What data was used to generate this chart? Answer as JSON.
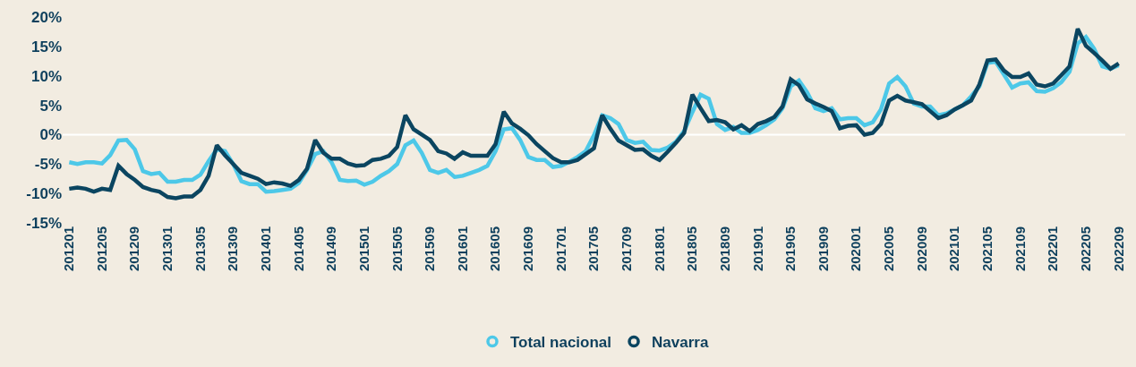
{
  "chart_data": {
    "type": "line",
    "categories": [
      "201201",
      null,
      null,
      null,
      "201205",
      null,
      null,
      null,
      "201209",
      null,
      null,
      null,
      "201301",
      null,
      null,
      null,
      "201305",
      null,
      null,
      null,
      "201309",
      null,
      null,
      null,
      "201401",
      null,
      null,
      null,
      "201405",
      null,
      null,
      null,
      "201409",
      null,
      null,
      null,
      "201501",
      null,
      null,
      null,
      "201505",
      null,
      null,
      null,
      "201509",
      null,
      null,
      null,
      "201601",
      null,
      null,
      null,
      "201605",
      null,
      null,
      null,
      "201609",
      null,
      null,
      null,
      "201701",
      null,
      null,
      null,
      "201705",
      null,
      null,
      null,
      "201709",
      null,
      null,
      null,
      "201801",
      null,
      null,
      null,
      "201805",
      null,
      null,
      null,
      "201809",
      null,
      null,
      null,
      "201901",
      null,
      null,
      null,
      "201905",
      null,
      null,
      null,
      "201909",
      null,
      null,
      null,
      "202001",
      null,
      null,
      null,
      "202005",
      null,
      null,
      null,
      "202009",
      null,
      null,
      null,
      "202101",
      null,
      null,
      null,
      "202105",
      null,
      null,
      null,
      "202109",
      null,
      null,
      null,
      "202201",
      null,
      null,
      null,
      "202205",
      null,
      null,
      null,
      "202209"
    ],
    "series": [
      {
        "name": "Total nacional",
        "color": "#4dc8e8",
        "values": [
          -4.7,
          -5.0,
          -4.7,
          -4.7,
          -4.9,
          -3.5,
          -1.0,
          -0.9,
          -2.5,
          -6.2,
          -6.7,
          -6.5,
          -8.0,
          -8.0,
          -7.7,
          -7.7,
          -6.8,
          -4.5,
          -2.5,
          -2.8,
          -5.0,
          -7.9,
          -8.4,
          -8.4,
          -9.7,
          -9.6,
          -9.4,
          -9.2,
          -8.2,
          -6.0,
          -3.3,
          -2.8,
          -4.7,
          -7.7,
          -7.9,
          -7.8,
          -8.5,
          -8.0,
          -7.0,
          -6.2,
          -5.0,
          -1.8,
          -1.0,
          -3.1,
          -6.0,
          -6.5,
          -6.0,
          -7.2,
          -7.0,
          -6.5,
          -6.0,
          -5.3,
          -2.8,
          0.9,
          1.1,
          -0.9,
          -3.8,
          -4.3,
          -4.3,
          -5.5,
          -5.3,
          -4.6,
          -3.8,
          -2.8,
          -0.1,
          3.3,
          2.8,
          1.8,
          -0.9,
          -1.4,
          -1.2,
          -2.6,
          -2.7,
          -2.2,
          -1.2,
          0.6,
          3.8,
          6.8,
          6.1,
          1.8,
          0.8,
          1.3,
          0.3,
          0.3,
          0.8,
          1.6,
          2.6,
          4.5,
          8.2,
          9.2,
          7.2,
          4.5,
          4.0,
          4.5,
          2.6,
          2.8,
          2.8,
          1.6,
          2.1,
          4.3,
          8.7,
          9.8,
          8.2,
          5.3,
          4.8,
          4.8,
          3.3,
          3.6,
          4.3,
          5.0,
          6.5,
          8.2,
          12.2,
          12.4,
          10.2,
          8.0,
          8.7,
          8.9,
          7.4,
          7.3,
          7.9,
          8.9,
          10.7,
          15.5,
          16.6,
          14.6,
          11.6,
          11.2,
          11.8
        ]
      },
      {
        "name": "Navarra",
        "color": "#0b4560",
        "values": [
          -9.2,
          -9.0,
          -9.2,
          -9.7,
          -9.2,
          -9.4,
          -5.3,
          -6.7,
          -7.7,
          -8.9,
          -9.4,
          -9.7,
          -10.6,
          -10.8,
          -10.5,
          -10.5,
          -9.4,
          -7.0,
          -1.8,
          -3.5,
          -5.0,
          -6.5,
          -7.0,
          -7.5,
          -8.4,
          -8.1,
          -8.3,
          -8.7,
          -7.7,
          -5.8,
          -0.9,
          -3.1,
          -4.1,
          -4.1,
          -4.9,
          -5.3,
          -5.2,
          -4.3,
          -4.1,
          -3.6,
          -2.1,
          3.3,
          0.9,
          0.0,
          -0.9,
          -2.8,
          -3.2,
          -4.1,
          -3.0,
          -3.6,
          -3.6,
          -3.6,
          -1.6,
          3.9,
          1.9,
          1.0,
          -0.1,
          -1.6,
          -2.8,
          -4.0,
          -4.7,
          -4.7,
          -4.3,
          -3.3,
          -2.3,
          3.3,
          1.0,
          -1.0,
          -1.8,
          -2.6,
          -2.5,
          -3.6,
          -4.3,
          -2.9,
          -1.4,
          0.3,
          6.8,
          4.5,
          2.3,
          2.5,
          2.1,
          0.9,
          1.6,
          0.6,
          1.8,
          2.3,
          3.0,
          4.8,
          9.4,
          8.4,
          6.0,
          5.3,
          4.7,
          4.0,
          1.1,
          1.5,
          1.6,
          0.0,
          0.3,
          1.8,
          5.8,
          6.6,
          5.8,
          5.5,
          5.2,
          4.0,
          2.8,
          3.3,
          4.3,
          5.0,
          5.8,
          8.5,
          12.6,
          12.8,
          10.9,
          9.8,
          9.8,
          10.4,
          8.5,
          8.2,
          8.7,
          10.1,
          11.6,
          18.0,
          15.1,
          13.9,
          12.6,
          11.2,
          12.1
        ]
      }
    ],
    "ylim": [
      -15,
      20
    ],
    "yticks": [
      {
        "value": -15,
        "label": "-15%"
      },
      {
        "value": -10,
        "label": "-10%"
      },
      {
        "value": -5,
        "label": "-5%"
      },
      {
        "value": 0,
        "label": "0%"
      },
      {
        "value": 5,
        "label": "5%"
      },
      {
        "value": 10,
        "label": "10%"
      },
      {
        "value": 15,
        "label": "15%"
      },
      {
        "value": 20,
        "label": "20%"
      }
    ],
    "ref_lines": [
      {
        "axis": "y",
        "value": 0,
        "color": "#ffffff"
      }
    ],
    "grid": false,
    "legend": "bottom",
    "marker": "none"
  }
}
